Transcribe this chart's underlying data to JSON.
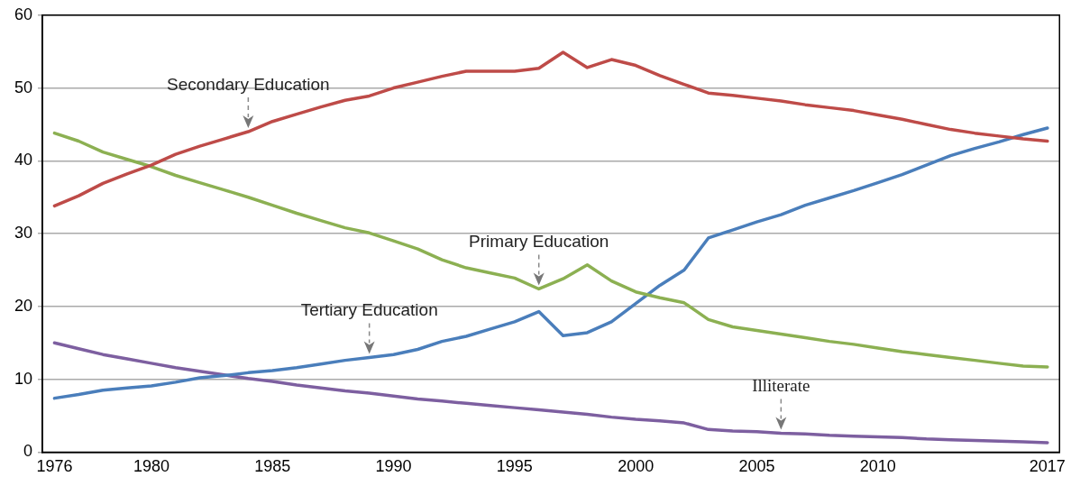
{
  "chart_data": {
    "type": "line",
    "x": [
      1976,
      1977,
      1978,
      1979,
      1980,
      1981,
      1982,
      1983,
      1984,
      1985,
      1986,
      1987,
      1988,
      1989,
      1990,
      1991,
      1992,
      1993,
      1994,
      1995,
      1996,
      1997,
      1998,
      1999,
      2000,
      2001,
      2002,
      2003,
      2004,
      2005,
      2006,
      2007,
      2008,
      2009,
      2010,
      2011,
      2012,
      2013,
      2014,
      2015,
      2016,
      2017
    ],
    "series": [
      {
        "name": "Secondary Education",
        "color": "#be4b48",
        "values": [
          33.8,
          35.2,
          36.9,
          38.2,
          39.4,
          40.9,
          42.0,
          43.0,
          44.0,
          45.4,
          46.4,
          47.4,
          48.3,
          48.9,
          50.0,
          50.8,
          51.6,
          52.3,
          52.3,
          52.3,
          52.7,
          54.9,
          52.8,
          53.9,
          53.1,
          51.7,
          50.5,
          49.3,
          49.0,
          48.6,
          48.2,
          47.7,
          47.3,
          46.9,
          46.3,
          45.7,
          45.0,
          44.3,
          43.8,
          43.4,
          43.0,
          42.7
        ]
      },
      {
        "name": "Primary Education",
        "color": "#8cb052",
        "values": [
          43.8,
          42.7,
          41.2,
          40.2,
          39.2,
          38.0,
          37.0,
          36.0,
          35.0,
          33.9,
          32.8,
          31.8,
          30.8,
          30.1,
          29.0,
          27.9,
          26.4,
          25.3,
          24.6,
          23.9,
          22.4,
          23.8,
          25.7,
          23.5,
          22.0,
          21.2,
          20.5,
          18.2,
          17.2,
          16.7,
          16.2,
          15.7,
          15.2,
          14.8,
          14.3,
          13.8,
          13.4,
          13.0,
          12.6,
          12.2,
          11.8,
          11.7
        ]
      },
      {
        "name": "Tertiary Education",
        "color": "#4a7ebb",
        "values": [
          7.4,
          7.9,
          8.5,
          8.8,
          9.1,
          9.6,
          10.2,
          10.5,
          10.9,
          11.2,
          11.6,
          12.1,
          12.6,
          13.0,
          13.4,
          14.1,
          15.2,
          15.9,
          16.9,
          17.9,
          19.3,
          16.0,
          16.4,
          17.9,
          20.4,
          22.9,
          25.0,
          29.4,
          30.5,
          31.6,
          32.6,
          33.9,
          34.9,
          35.9,
          37.0,
          38.1,
          39.4,
          40.7,
          41.7,
          42.6,
          43.6,
          44.5
        ]
      },
      {
        "name": "Illiterate",
        "color": "#7d5fa0",
        "values": [
          15.0,
          14.2,
          13.4,
          12.8,
          12.2,
          11.6,
          11.1,
          10.6,
          10.1,
          9.7,
          9.2,
          8.8,
          8.4,
          8.1,
          7.7,
          7.3,
          7.0,
          6.7,
          6.4,
          6.1,
          5.8,
          5.5,
          5.2,
          4.8,
          4.5,
          4.3,
          4.0,
          3.1,
          2.9,
          2.8,
          2.6,
          2.5,
          2.3,
          2.2,
          2.1,
          2.0,
          1.8,
          1.7,
          1.6,
          1.5,
          1.4,
          1.3
        ]
      }
    ],
    "xlim": [
      1975.5,
      2017.5
    ],
    "xticks": [
      1976,
      1980,
      1985,
      1990,
      1995,
      2000,
      2005,
      2010,
      2017
    ],
    "ylim": [
      0,
      60
    ],
    "yticks": [
      0,
      10,
      20,
      30,
      40,
      50,
      60
    ],
    "grid": "y",
    "legend": false,
    "marker": "none",
    "line_style": "solid"
  }
}
